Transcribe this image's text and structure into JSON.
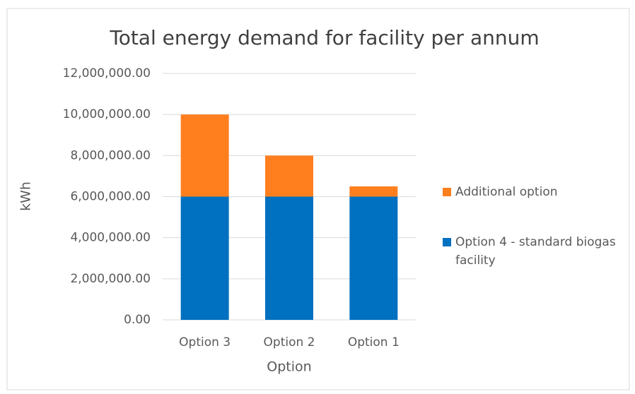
{
  "chart_data": {
    "type": "stacked_bar",
    "title": "Total energy demand for facility per annum",
    "x_label": "Option",
    "y_label": "kWh",
    "categories": [
      "Option 3",
      "Option 2",
      "Option 1"
    ],
    "series": [
      {
        "name": "Option 4 - standard biogas facility",
        "color": "#0070c0",
        "values": [
          6000000,
          6000000,
          6000000
        ]
      },
      {
        "name": "Additional option",
        "color": "#ff7f1f",
        "values": [
          4000000,
          2000000,
          500000
        ]
      }
    ],
    "ylim": [
      0,
      12000000
    ],
    "yticks": [
      {
        "value": 0,
        "label": "0.00"
      },
      {
        "value": 2000000,
        "label": "2,000,000.00"
      },
      {
        "value": 4000000,
        "label": "4,000,000.00"
      },
      {
        "value": 6000000,
        "label": "6,000,000.00"
      },
      {
        "value": 8000000,
        "label": "8,000,000.00"
      },
      {
        "value": 10000000,
        "label": "10,000,000.00"
      },
      {
        "value": 12000000,
        "label": "12,000,000.00"
      }
    ],
    "grid": true,
    "legend": "right"
  }
}
